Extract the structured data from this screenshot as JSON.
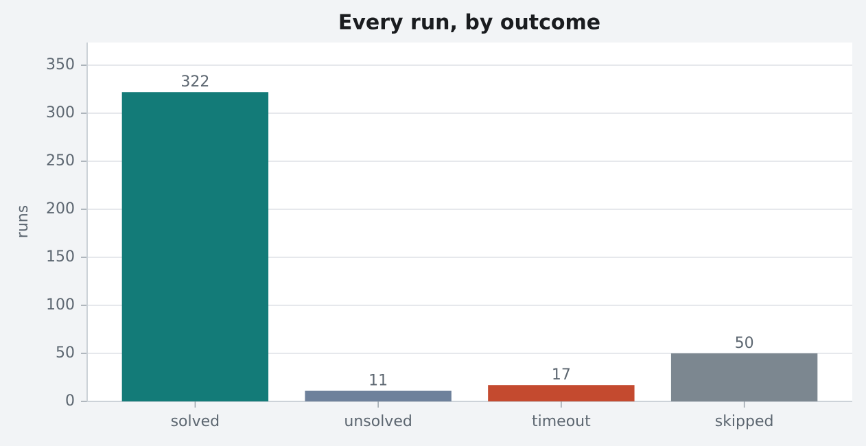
{
  "chart_data": {
    "type": "bar",
    "title": "Every run, by outcome",
    "y_label": "runs",
    "categories": [
      "solved",
      "unsolved",
      "timeout",
      "skipped"
    ],
    "values": [
      322,
      11,
      17,
      50
    ],
    "colors": [
      "#137b78",
      "#6e819b",
      "#c44a2f",
      "#7c8790"
    ],
    "ylim": [
      0,
      373.6
    ],
    "yticks": [
      0,
      50,
      100,
      150,
      200,
      250,
      300,
      350
    ],
    "grid": true
  }
}
